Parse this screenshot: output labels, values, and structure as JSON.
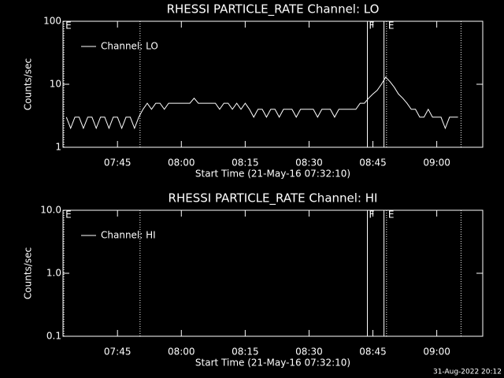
{
  "chart_data": [
    {
      "type": "line",
      "title": "RHESSI PARTICLE_RATE Channel: LO",
      "x_label": "Start Time (21-May-16 07:32:10)",
      "y_label": "Counts/sec",
      "log_y": true,
      "xlim": [
        452.2,
        550.8
      ],
      "ylim": [
        1,
        100
      ],
      "yticks": [
        1,
        10,
        100
      ],
      "xticks": [
        {
          "value": 465,
          "label": "07:45"
        },
        {
          "value": 480,
          "label": "08:00"
        },
        {
          "value": 495,
          "label": "08:15"
        },
        {
          "value": 510,
          "label": "08:30"
        },
        {
          "value": 525,
          "label": "08:45"
        },
        {
          "value": 540,
          "label": "09:00"
        }
      ],
      "legend": "upper left",
      "markers": [
        {
          "x": 452.4,
          "style": "dotted",
          "label": "E"
        },
        {
          "x": 470.3,
          "style": "dotted"
        },
        {
          "x": 523.7,
          "style": "solid",
          "label": "F"
        },
        {
          "x": 527.6,
          "style": "solid"
        },
        {
          "x": 528.2,
          "style": "dotted",
          "label": "E"
        },
        {
          "x": 545.7,
          "style": "dotted"
        }
      ],
      "x": [
        453,
        454,
        455,
        456,
        457,
        458,
        459,
        460,
        461,
        462,
        463,
        464,
        465,
        466,
        467,
        468,
        469,
        470,
        471,
        472,
        473,
        474,
        475,
        476,
        477,
        478,
        479,
        480,
        481,
        482,
        483,
        484,
        485,
        486,
        487,
        488,
        489,
        490,
        491,
        492,
        493,
        494,
        495,
        496,
        497,
        498,
        499,
        500,
        501,
        502,
        503,
        504,
        505,
        506,
        507,
        508,
        509,
        510,
        511,
        512,
        513,
        514,
        515,
        516,
        517,
        518,
        519,
        520,
        521,
        522,
        523,
        524,
        525,
        526,
        527,
        528,
        529,
        530,
        531,
        532,
        533,
        534,
        535,
        536,
        537,
        538,
        539,
        540,
        541,
        542,
        543,
        544,
        545
      ],
      "series": [
        {
          "name": "Channel: LO",
          "color": "#ffffff",
          "values": [
            3,
            2,
            3,
            3,
            2,
            3,
            3,
            2,
            3,
            3,
            2,
            3,
            3,
            2,
            3,
            3,
            2,
            3,
            4,
            5,
            4,
            5,
            5,
            4,
            5,
            5,
            5,
            5,
            5,
            5,
            6,
            5,
            5,
            5,
            5,
            5,
            4,
            5,
            5,
            4,
            5,
            4,
            5,
            4,
            3,
            4,
            4,
            3,
            4,
            4,
            3,
            4,
            4,
            4,
            3,
            4,
            4,
            4,
            4,
            3,
            4,
            4,
            4,
            3,
            4,
            4,
            4,
            4,
            4,
            5,
            5,
            6,
            7,
            8,
            10,
            13,
            11,
            9,
            7,
            6,
            5,
            4,
            4,
            3,
            3,
            4,
            3,
            3,
            3,
            2,
            3,
            3,
            3
          ]
        }
      ]
    },
    {
      "type": "line",
      "title": "RHESSI PARTICLE_RATE Channel: HI",
      "x_label": "Start Time (21-May-16 07:32:10)",
      "y_label": "Counts/sec",
      "log_y": true,
      "xlim": [
        452.2,
        550.8
      ],
      "ylim": [
        0.1,
        10
      ],
      "yticks": [
        0.1,
        {
          "value": 1,
          "label": "1.0"
        },
        {
          "value": 10,
          "label": "10.0"
        }
      ],
      "xticks": [
        {
          "value": 465,
          "label": "07:45"
        },
        {
          "value": 480,
          "label": "08:00"
        },
        {
          "value": 495,
          "label": "08:15"
        },
        {
          "value": 510,
          "label": "08:30"
        },
        {
          "value": 525,
          "label": "08:45"
        },
        {
          "value": 540,
          "label": "09:00"
        }
      ],
      "legend": "upper left",
      "markers": [
        {
          "x": 452.4,
          "style": "dotted",
          "label": "E"
        },
        {
          "x": 470.3,
          "style": "dotted"
        },
        {
          "x": 523.7,
          "style": "solid",
          "label": "F"
        },
        {
          "x": 527.6,
          "style": "solid"
        },
        {
          "x": 528.2,
          "style": "dotted",
          "label": "E"
        },
        {
          "x": 545.7,
          "style": "dotted"
        }
      ],
      "x": [],
      "series": [
        {
          "name": "Channel: HI",
          "color": "#ffffff",
          "values": []
        }
      ]
    }
  ],
  "footer": "31-Aug-2022 20:12"
}
